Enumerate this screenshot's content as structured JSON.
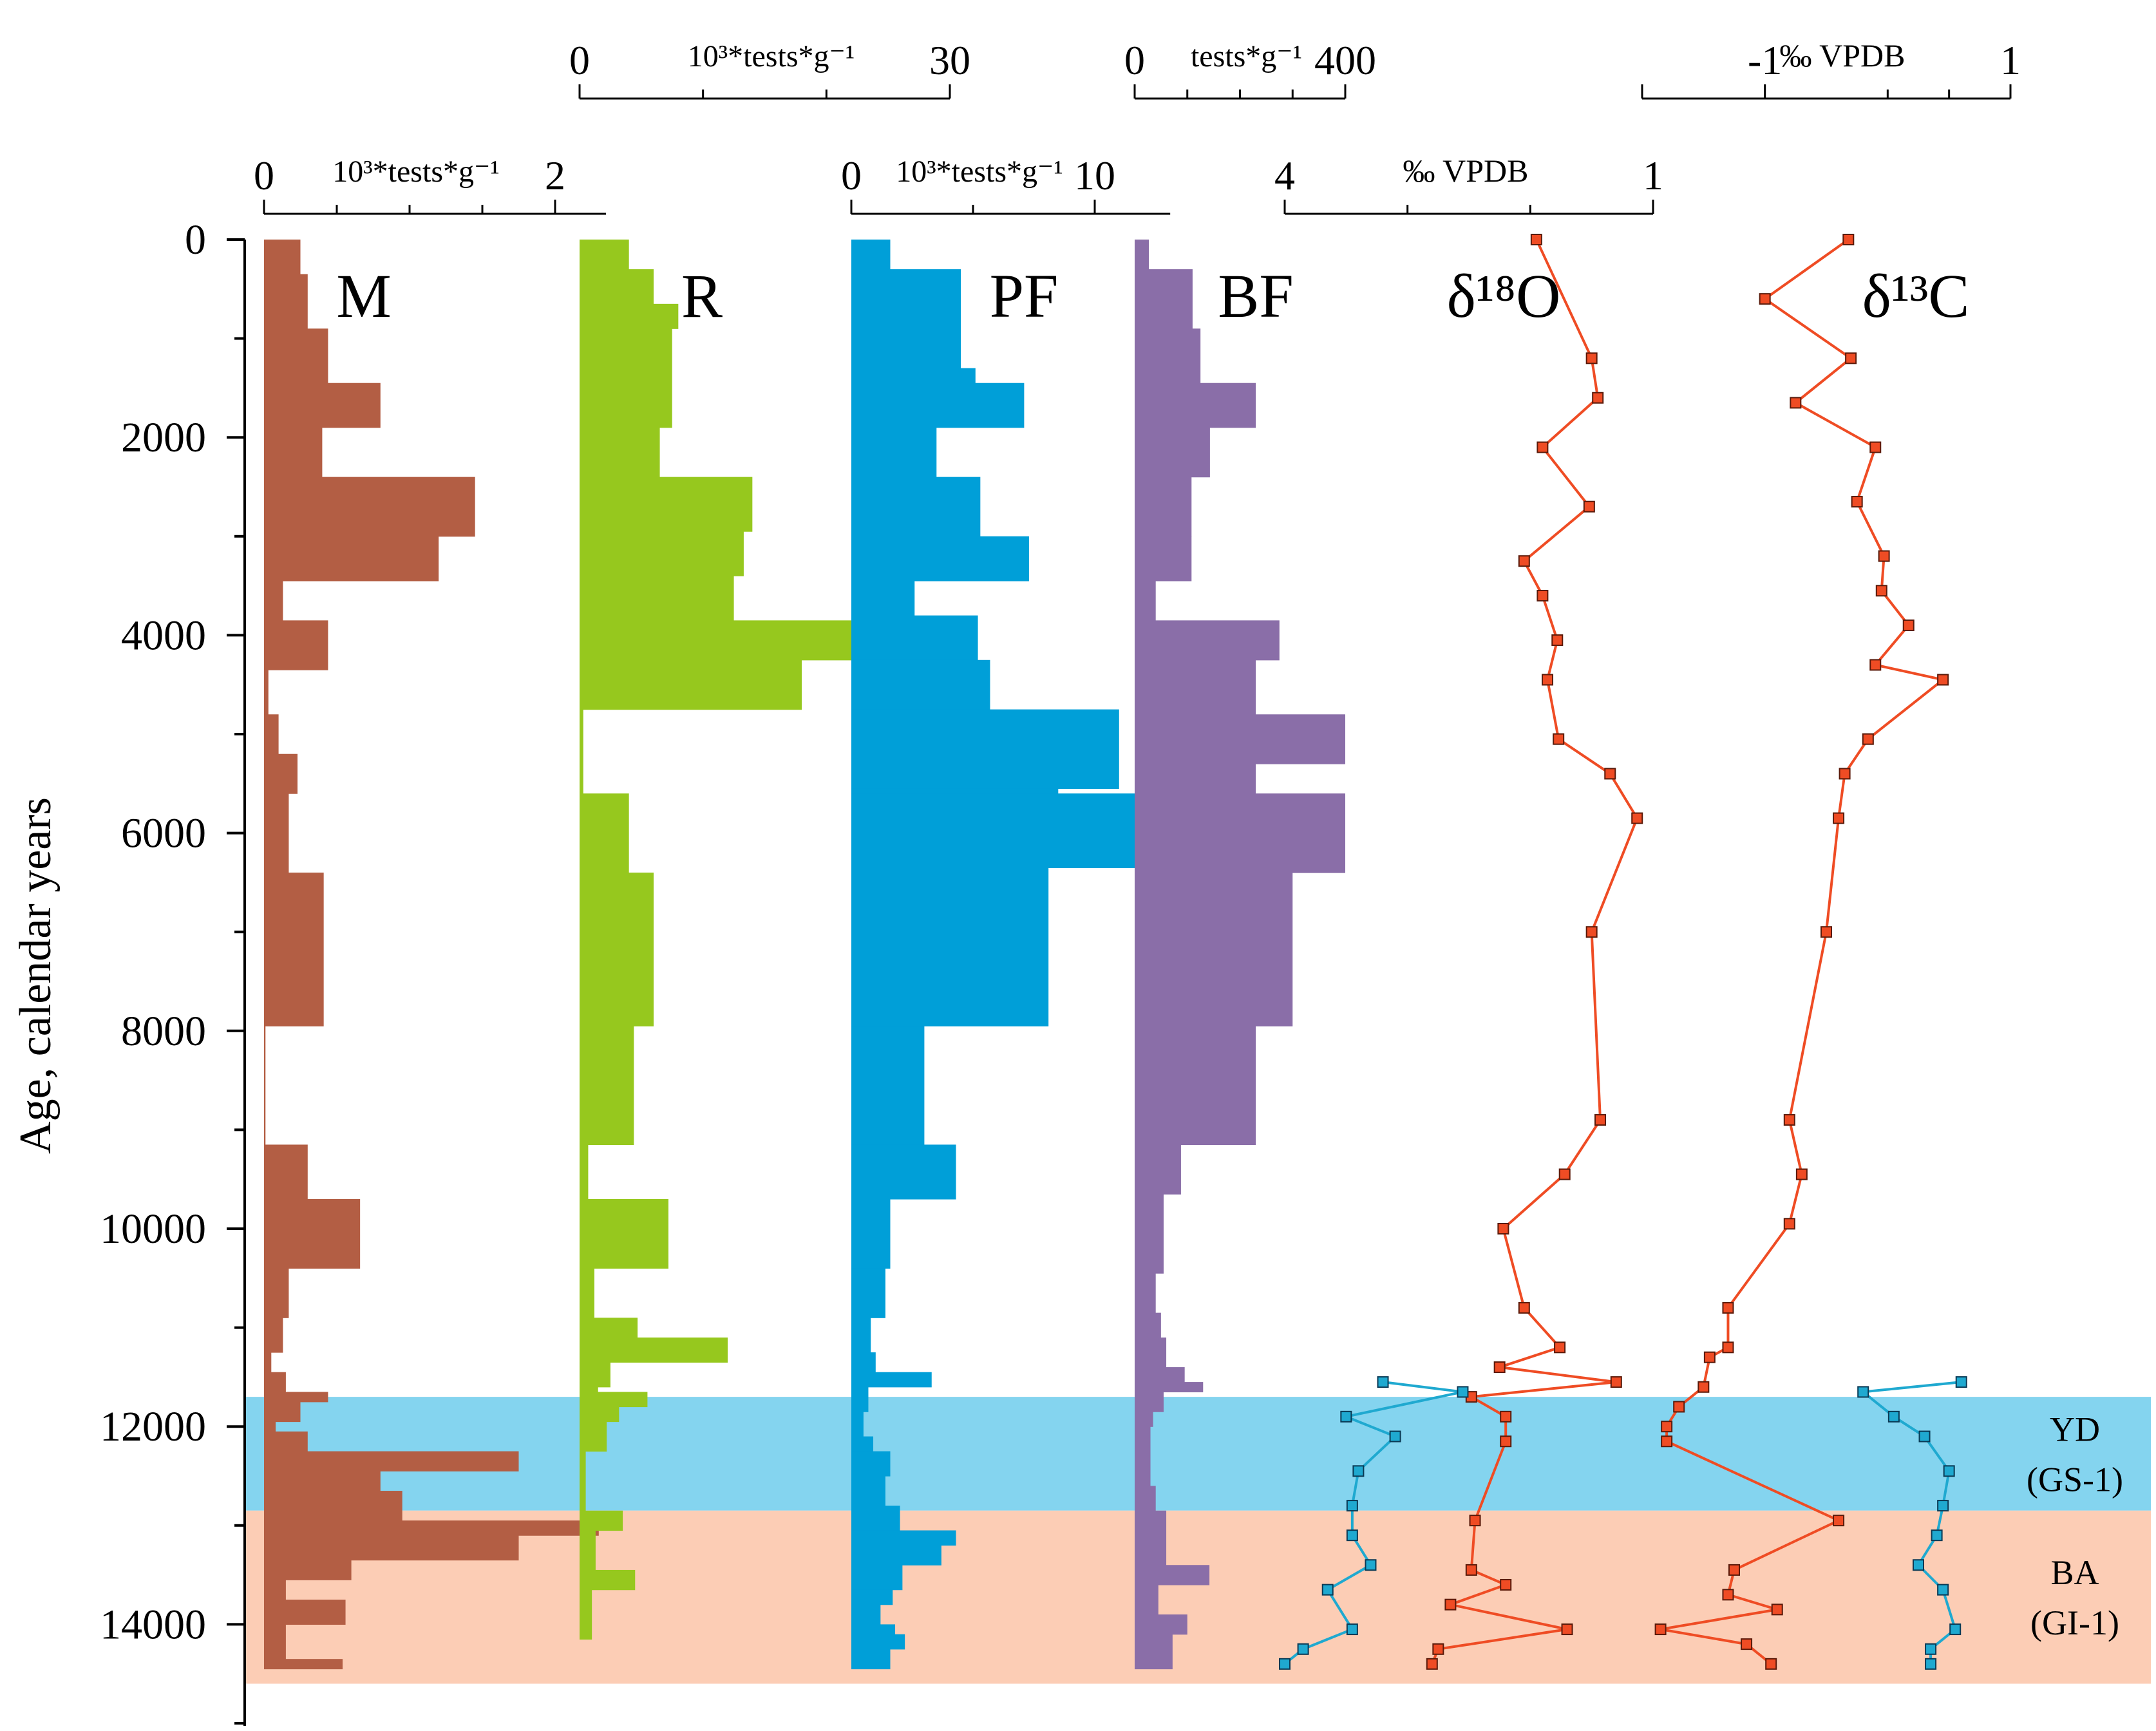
{
  "chart_data": {
    "type": "bar",
    "ylabel": "Age, calendar years",
    "y_ticks": [
      0,
      2000,
      4000,
      6000,
      8000,
      10000,
      12000,
      14000
    ],
    "ylim": [
      0,
      15000
    ],
    "y_direction": "downward",
    "zones": [
      {
        "name": "YD",
        "sub": "(GS-1)",
        "from": 11700,
        "to": 12850,
        "color": "#84d4ef"
      },
      {
        "name": "BA",
        "sub": "(GI-1)",
        "from": 12850,
        "to": 14600,
        "color": "#fccdb5"
      }
    ],
    "series": [
      {
        "name": "M",
        "color": "#b35e44",
        "axis": {
          "min": 0,
          "max": 2,
          "unit": "10³*tests*g⁻¹",
          "ticks": [
            "0",
            "2"
          ],
          "minor": [
            0.5,
            1,
            1.5
          ],
          "extent": 2.35
        },
        "steps": [
          [
            0,
            350,
            0.25
          ],
          [
            350,
            900,
            0.3
          ],
          [
            900,
            1450,
            0.44
          ],
          [
            1450,
            1900,
            0.8
          ],
          [
            1900,
            2400,
            0.4
          ],
          [
            2400,
            3000,
            1.45
          ],
          [
            3000,
            3450,
            1.2
          ],
          [
            3450,
            3850,
            0.13
          ],
          [
            3850,
            4350,
            0.44
          ],
          [
            4350,
            4800,
            0.03
          ],
          [
            4800,
            5200,
            0.1
          ],
          [
            5200,
            5600,
            0.23
          ],
          [
            5600,
            6400,
            0.17
          ],
          [
            6400,
            7950,
            0.41
          ],
          [
            7950,
            9150,
            0.01
          ],
          [
            9150,
            9700,
            0.3
          ],
          [
            9700,
            10400,
            0.66
          ],
          [
            10400,
            10900,
            0.17
          ],
          [
            10900,
            11250,
            0.13
          ],
          [
            11250,
            11450,
            0.05
          ],
          [
            11450,
            11650,
            0.15
          ],
          [
            11650,
            11750,
            0.44
          ],
          [
            11750,
            11950,
            0.25
          ],
          [
            11950,
            12050,
            0.08
          ],
          [
            12050,
            12250,
            0.3
          ],
          [
            12250,
            12450,
            1.75
          ],
          [
            12450,
            12650,
            0.8
          ],
          [
            12650,
            12950,
            0.95
          ],
          [
            12950,
            13100,
            2.3
          ],
          [
            13100,
            13350,
            1.75
          ],
          [
            13350,
            13550,
            0.6
          ],
          [
            13550,
            13750,
            0.15
          ],
          [
            13750,
            14000,
            0.56
          ],
          [
            14000,
            14350,
            0.15
          ],
          [
            14350,
            14450,
            0.54
          ]
        ]
      },
      {
        "name": "R",
        "color": "#96c81e",
        "axis": {
          "min": 0,
          "max": 30,
          "unit": "10³*tests*g⁻¹",
          "ticks": [
            "0",
            "30"
          ],
          "minor": [
            10,
            20
          ],
          "extent": 30
        },
        "steps": [
          [
            0,
            300,
            4
          ],
          [
            300,
            650,
            6
          ],
          [
            650,
            900,
            8
          ],
          [
            900,
            1900,
            7.5
          ],
          [
            1900,
            2400,
            6.5
          ],
          [
            2400,
            2950,
            14
          ],
          [
            2950,
            3400,
            13.3
          ],
          [
            3400,
            3850,
            12.5
          ],
          [
            3850,
            4250,
            30
          ],
          [
            4250,
            4750,
            18
          ],
          [
            4750,
            5600,
            0.3
          ],
          [
            5600,
            6400,
            4
          ],
          [
            6400,
            6950,
            6
          ],
          [
            6950,
            7950,
            6
          ],
          [
            7950,
            9150,
            4.4
          ],
          [
            9150,
            9700,
            0.7
          ],
          [
            9700,
            10400,
            7.2
          ],
          [
            10400,
            10900,
            1.2
          ],
          [
            10900,
            11100,
            4.7
          ],
          [
            11100,
            11350,
            12
          ],
          [
            11350,
            11600,
            2.5
          ],
          [
            11600,
            11650,
            1.5
          ],
          [
            11650,
            11800,
            5.5
          ],
          [
            11800,
            11950,
            3.2
          ],
          [
            11950,
            12250,
            2.2
          ],
          [
            12250,
            12850,
            0.5
          ],
          [
            12850,
            13050,
            3.5
          ],
          [
            13050,
            13450,
            1.3
          ],
          [
            13450,
            13650,
            4.5
          ],
          [
            13650,
            14150,
            1
          ]
        ]
      },
      {
        "name": "PF",
        "color": "#009fd8",
        "axis": {
          "min": 0,
          "max": 10,
          "unit": "10³*tests*g⁻¹",
          "ticks": [
            "0",
            "10"
          ],
          "minor": [
            5
          ],
          "extent": 13.1
        },
        "steps": [
          [
            0,
            300,
            1.6
          ],
          [
            300,
            1300,
            4.5
          ],
          [
            1300,
            1450,
            5.1
          ],
          [
            1450,
            1900,
            7.1
          ],
          [
            1900,
            2400,
            3.5
          ],
          [
            2400,
            3000,
            5.3
          ],
          [
            3000,
            3450,
            7.3
          ],
          [
            3450,
            3800,
            2.6
          ],
          [
            3800,
            4250,
            5.2
          ],
          [
            4250,
            4750,
            5.7
          ],
          [
            4750,
            5550,
            11
          ],
          [
            5550,
            5600,
            8.5
          ],
          [
            5600,
            6350,
            12.8
          ],
          [
            6350,
            7950,
            8.1
          ],
          [
            7950,
            9150,
            3
          ],
          [
            9150,
            9700,
            4.3
          ],
          [
            9700,
            10400,
            1.6
          ],
          [
            10400,
            10900,
            1.4
          ],
          [
            10900,
            11250,
            0.8
          ],
          [
            11250,
            11450,
            1
          ],
          [
            11450,
            11600,
            3.3
          ],
          [
            11600,
            11850,
            0.7
          ],
          [
            11850,
            12100,
            0.5
          ],
          [
            12100,
            12250,
            0.9
          ],
          [
            12250,
            12500,
            1.6
          ],
          [
            12500,
            12800,
            1.4
          ],
          [
            12800,
            13050,
            2
          ],
          [
            13050,
            13200,
            4.3
          ],
          [
            13200,
            13400,
            3.7
          ],
          [
            13400,
            13650,
            2.1
          ],
          [
            13650,
            13800,
            1.7
          ],
          [
            13800,
            14000,
            1.2
          ],
          [
            14000,
            14100,
            1.8
          ],
          [
            14100,
            14250,
            2.2
          ],
          [
            14250,
            14450,
            1.6
          ]
        ]
      },
      {
        "name": "BF",
        "color": "#8a6ea8",
        "axis": {
          "min": 0,
          "max": 400,
          "unit": "tests*g⁻¹",
          "ticks": [
            "0",
            "400"
          ],
          "minor": [
            100,
            200,
            300
          ],
          "extent": 400
        },
        "steps": [
          [
            0,
            300,
            27
          ],
          [
            300,
            900,
            110
          ],
          [
            900,
            1450,
            125
          ],
          [
            1450,
            1900,
            230
          ],
          [
            1900,
            2400,
            143
          ],
          [
            2400,
            3000,
            108
          ],
          [
            3000,
            3450,
            108
          ],
          [
            3450,
            3850,
            40
          ],
          [
            3850,
            4250,
            275
          ],
          [
            4250,
            4800,
            230
          ],
          [
            4800,
            5300,
            400
          ],
          [
            5300,
            5600,
            230
          ],
          [
            5600,
            6400,
            400
          ],
          [
            6400,
            7950,
            300
          ],
          [
            7950,
            9150,
            230
          ],
          [
            9150,
            9650,
            88
          ],
          [
            9650,
            10450,
            55
          ],
          [
            10450,
            10850,
            40
          ],
          [
            10850,
            11100,
            50
          ],
          [
            11100,
            11400,
            60
          ],
          [
            11400,
            11550,
            95
          ],
          [
            11550,
            11650,
            130
          ],
          [
            11650,
            11850,
            55
          ],
          [
            11850,
            12000,
            35
          ],
          [
            12000,
            12600,
            30
          ],
          [
            12600,
            12850,
            40
          ],
          [
            12850,
            13400,
            60
          ],
          [
            13400,
            13600,
            142
          ],
          [
            13600,
            13900,
            45
          ],
          [
            13900,
            14100,
            100
          ],
          [
            14100,
            14450,
            72
          ]
        ]
      }
    ],
    "isotope_series": [
      {
        "name": "δ¹⁸O",
        "color": "#ef4c24",
        "axis": {
          "min": 4,
          "max": 1,
          "unit": "‰ VPDB",
          "ticks": [
            "4",
            "1"
          ],
          "minor": [
            3,
            2
          ]
        },
        "points": [
          [
            0,
            1.95
          ],
          [
            1200,
            1.5
          ],
          [
            1600,
            1.45
          ],
          [
            2100,
            1.9
          ],
          [
            2700,
            1.52
          ],
          [
            3250,
            2.05
          ],
          [
            3600,
            1.9
          ],
          [
            4050,
            1.78
          ],
          [
            4450,
            1.86
          ],
          [
            5050,
            1.77
          ],
          [
            5400,
            1.35
          ],
          [
            5850,
            1.13
          ],
          [
            7000,
            1.5
          ],
          [
            8900,
            1.43
          ],
          [
            9450,
            1.72
          ],
          [
            10000,
            2.22
          ],
          [
            10800,
            2.05
          ],
          [
            11200,
            1.76
          ],
          [
            11400,
            2.25
          ],
          [
            11550,
            1.3
          ],
          [
            11700,
            2.48
          ],
          [
            11900,
            2.2
          ],
          [
            12150,
            2.2
          ],
          [
            12950,
            2.45
          ],
          [
            13450,
            2.48
          ],
          [
            13600,
            2.2
          ],
          [
            13800,
            2.65
          ],
          [
            14050,
            1.7
          ],
          [
            14250,
            2.75
          ],
          [
            14400,
            2.8
          ]
        ]
      },
      {
        "name": "δ¹³C",
        "color": "#ef4c24",
        "axis": {
          "min": -2,
          "max": 1,
          "unit": "‰ VPDB",
          "ticks": [
            "-1",
            "1"
          ],
          "minor": [
            0,
            0.5
          ],
          "extent_min": -2
        },
        "points": [
          [
            0,
            -0.32
          ],
          [
            600,
            -1
          ],
          [
            1200,
            -0.3
          ],
          [
            1650,
            -0.75
          ],
          [
            2100,
            -0.1
          ],
          [
            2650,
            -0.25
          ],
          [
            3200,
            -0.03
          ],
          [
            3550,
            -0.05
          ],
          [
            3900,
            0.17
          ],
          [
            4300,
            -0.1
          ],
          [
            4450,
            0.45
          ],
          [
            5050,
            -0.16
          ],
          [
            5400,
            -0.35
          ],
          [
            5850,
            -0.4
          ],
          [
            7000,
            -0.5
          ],
          [
            8900,
            -0.8
          ],
          [
            9450,
            -0.7
          ],
          [
            9950,
            -0.8
          ],
          [
            10800,
            -1.3
          ],
          [
            11200,
            -1.3
          ],
          [
            11300,
            -1.45
          ],
          [
            11600,
            -1.5
          ],
          [
            11800,
            -1.7
          ],
          [
            12000,
            -1.8
          ],
          [
            12150,
            -1.8
          ],
          [
            12950,
            -0.4
          ],
          [
            13450,
            -1.25
          ],
          [
            13700,
            -1.3
          ],
          [
            13850,
            -0.9
          ],
          [
            14050,
            -1.85
          ],
          [
            14200,
            -1.15
          ],
          [
            14400,
            -0.95
          ]
        ]
      }
    ],
    "yd_series": [
      {
        "color": "#1fa9d0",
        "points": [
          [
            11550,
            3.2
          ],
          [
            11650,
            2.55
          ],
          [
            11900,
            3.5
          ],
          [
            12100,
            3.1
          ],
          [
            12450,
            3.4
          ],
          [
            12800,
            3.45
          ],
          [
            13100,
            3.45
          ],
          [
            13400,
            3.3
          ],
          [
            13650,
            3.65
          ],
          [
            14050,
            3.45
          ],
          [
            14250,
            3.85
          ],
          [
            14400,
            4.0
          ]
        ]
      },
      {
        "color": "#1fa9d0",
        "points": [
          [
            11550,
            0.6
          ],
          [
            11650,
            -0.2
          ],
          [
            11900,
            0.05
          ],
          [
            12100,
            0.3
          ],
          [
            12450,
            0.5
          ],
          [
            12800,
            0.45
          ],
          [
            13100,
            0.4
          ],
          [
            13400,
            0.25
          ],
          [
            13650,
            0.45
          ],
          [
            14050,
            0.55
          ],
          [
            14250,
            0.35
          ],
          [
            14400,
            0.35
          ]
        ]
      }
    ]
  }
}
